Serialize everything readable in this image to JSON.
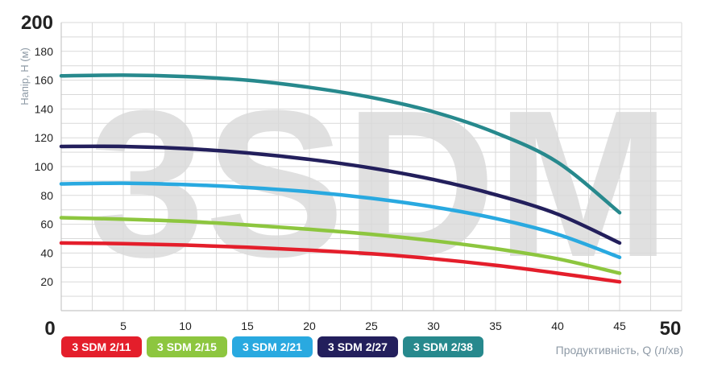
{
  "chart_data": {
    "type": "line",
    "watermark": "3SDM",
    "ylabel": "Напір, H (м)",
    "xlabel": "Продуктивність, Q (л/хв)",
    "xlim": [
      0,
      50
    ],
    "ylim": [
      0,
      200
    ],
    "xticks": [
      "0",
      "5",
      "10",
      "15",
      "20",
      "25",
      "30",
      "35",
      "40",
      "45",
      "50"
    ],
    "yticks": [
      "20",
      "40",
      "60",
      "80",
      "100",
      "120",
      "140",
      "160",
      "180",
      "200"
    ],
    "grid": true,
    "legend_position": "bottom-left",
    "series": [
      {
        "name": "3 SDM 2/11",
        "color": "#e41e2b",
        "x": [
          0,
          5,
          10,
          15,
          20,
          25,
          30,
          35,
          40,
          45
        ],
        "y": [
          47,
          46.5,
          45.5,
          44,
          42,
          39.5,
          36,
          31.5,
          26,
          20
        ]
      },
      {
        "name": "3 SDM 2/15",
        "color": "#8dc63f",
        "x": [
          0,
          5,
          10,
          15,
          20,
          25,
          30,
          35,
          40,
          45
        ],
        "y": [
          64.5,
          63.5,
          62,
          59.5,
          56.5,
          53,
          48.5,
          43,
          36,
          26
        ]
      },
      {
        "name": "3 SDM 2/21",
        "color": "#29a9e0",
        "x": [
          0,
          5,
          10,
          15,
          20,
          25,
          30,
          35,
          40,
          45
        ],
        "y": [
          88,
          88.5,
          87.5,
          85.5,
          82.5,
          78,
          72,
          64,
          53,
          37
        ]
      },
      {
        "name": "3 SDM 2/27",
        "color": "#231f5c",
        "x": [
          0,
          5,
          10,
          15,
          20,
          25,
          30,
          35,
          40,
          45
        ],
        "y": [
          114,
          114,
          112.5,
          109.5,
          105,
          99,
          91,
          80.5,
          67,
          47
        ]
      },
      {
        "name": "3 SDM 2/38",
        "color": "#27898d",
        "x": [
          0,
          5,
          10,
          15,
          20,
          25,
          30,
          35,
          40,
          45
        ],
        "y": [
          163,
          163.5,
          162.5,
          160,
          155,
          148,
          138,
          123.5,
          103,
          68
        ]
      }
    ]
  }
}
